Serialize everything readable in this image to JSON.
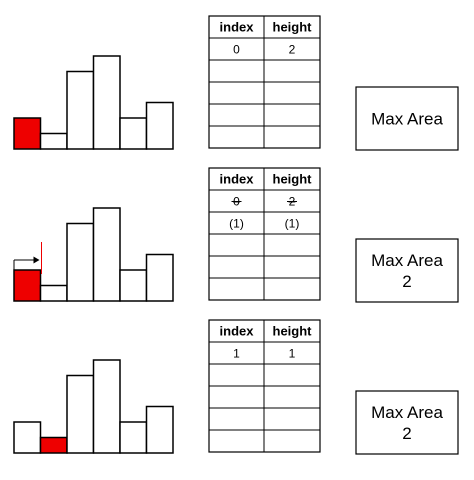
{
  "colors": {
    "highlight": "#ee0000",
    "bar_fill": "#ffffff",
    "stroke": "#000000",
    "background": "#ffffff"
  },
  "panels": [
    {
      "bar_heights": [
        2,
        1,
        5,
        6,
        2,
        3
      ],
      "highlighted_bar": 0,
      "arrow_marker": false,
      "table": {
        "headers": [
          "index",
          "height"
        ],
        "rows": [
          [
            "0",
            "2"
          ],
          [
            "",
            ""
          ],
          [
            "",
            ""
          ],
          [
            "",
            ""
          ],
          [
            "",
            ""
          ]
        ],
        "struck_rows": []
      },
      "result_lines": [
        "Max Area"
      ]
    },
    {
      "bar_heights": [
        2,
        1,
        5,
        6,
        2,
        3
      ],
      "highlighted_bar": 0,
      "arrow_marker": true,
      "table": {
        "headers": [
          "index",
          "height"
        ],
        "rows": [
          [
            "0",
            "2"
          ],
          [
            "(1)",
            "(1)"
          ],
          [
            "",
            ""
          ],
          [
            "",
            ""
          ],
          [
            "",
            ""
          ]
        ],
        "struck_rows": [
          0
        ]
      },
      "result_lines": [
        "Max Area",
        "2"
      ]
    },
    {
      "bar_heights": [
        2,
        1,
        5,
        6,
        2,
        3
      ],
      "highlighted_bar": 1,
      "arrow_marker": false,
      "table": {
        "headers": [
          "index",
          "height"
        ],
        "rows": [
          [
            "1",
            "1"
          ],
          [
            "",
            ""
          ],
          [
            "",
            ""
          ],
          [
            "",
            ""
          ],
          [
            "",
            ""
          ]
        ],
        "struck_rows": []
      },
      "result_lines": [
        "Max Area",
        "2"
      ]
    }
  ]
}
